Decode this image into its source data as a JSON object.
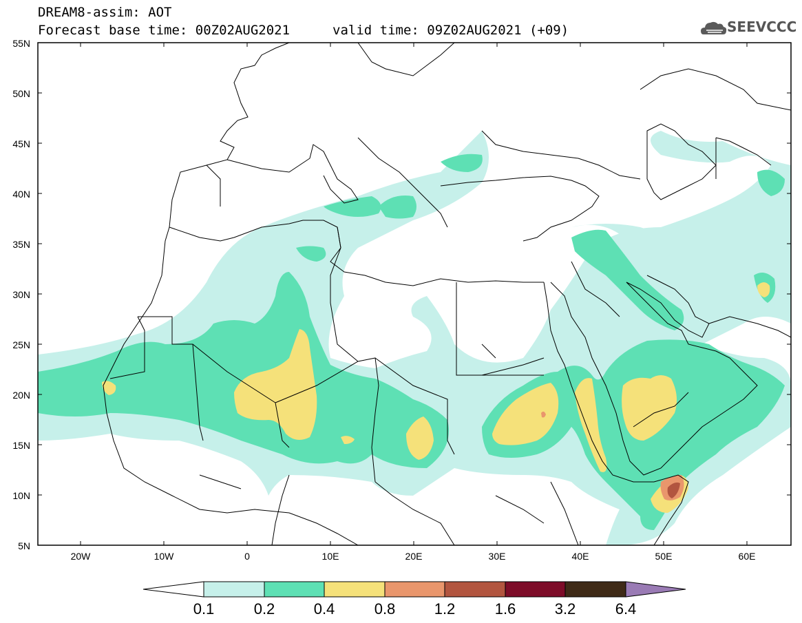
{
  "header": {
    "title": "DREAM8-assim: AOT",
    "base_time": "Forecast base time: 00Z02AUG2021",
    "valid_time": "valid time: 09Z02AUG2021 (+09)",
    "logo_text": "SEEVCCC"
  },
  "map": {
    "lat_labels": [
      "55N",
      "50N",
      "45N",
      "40N",
      "35N",
      "30N",
      "25N",
      "20N",
      "15N",
      "10N",
      "5N"
    ],
    "lon_labels": [
      "20W",
      "10W",
      "0",
      "10E",
      "20E",
      "30E",
      "40E",
      "50E",
      "60E"
    ]
  },
  "legend": {
    "labels": [
      "0.1",
      "0.2",
      "0.4",
      "0.8",
      "1.2",
      "1.6",
      "3.2",
      "6.4"
    ],
    "colors": {
      "c01": "#c6f0ea",
      "c02": "#5ee0b4",
      "c04": "#f5e17a",
      "c08": "#e9966c",
      "c12": "#b2553f",
      "c16": "#7d0c28",
      "c32": "#3f2a17",
      "c64": "#9a7bb5"
    }
  }
}
